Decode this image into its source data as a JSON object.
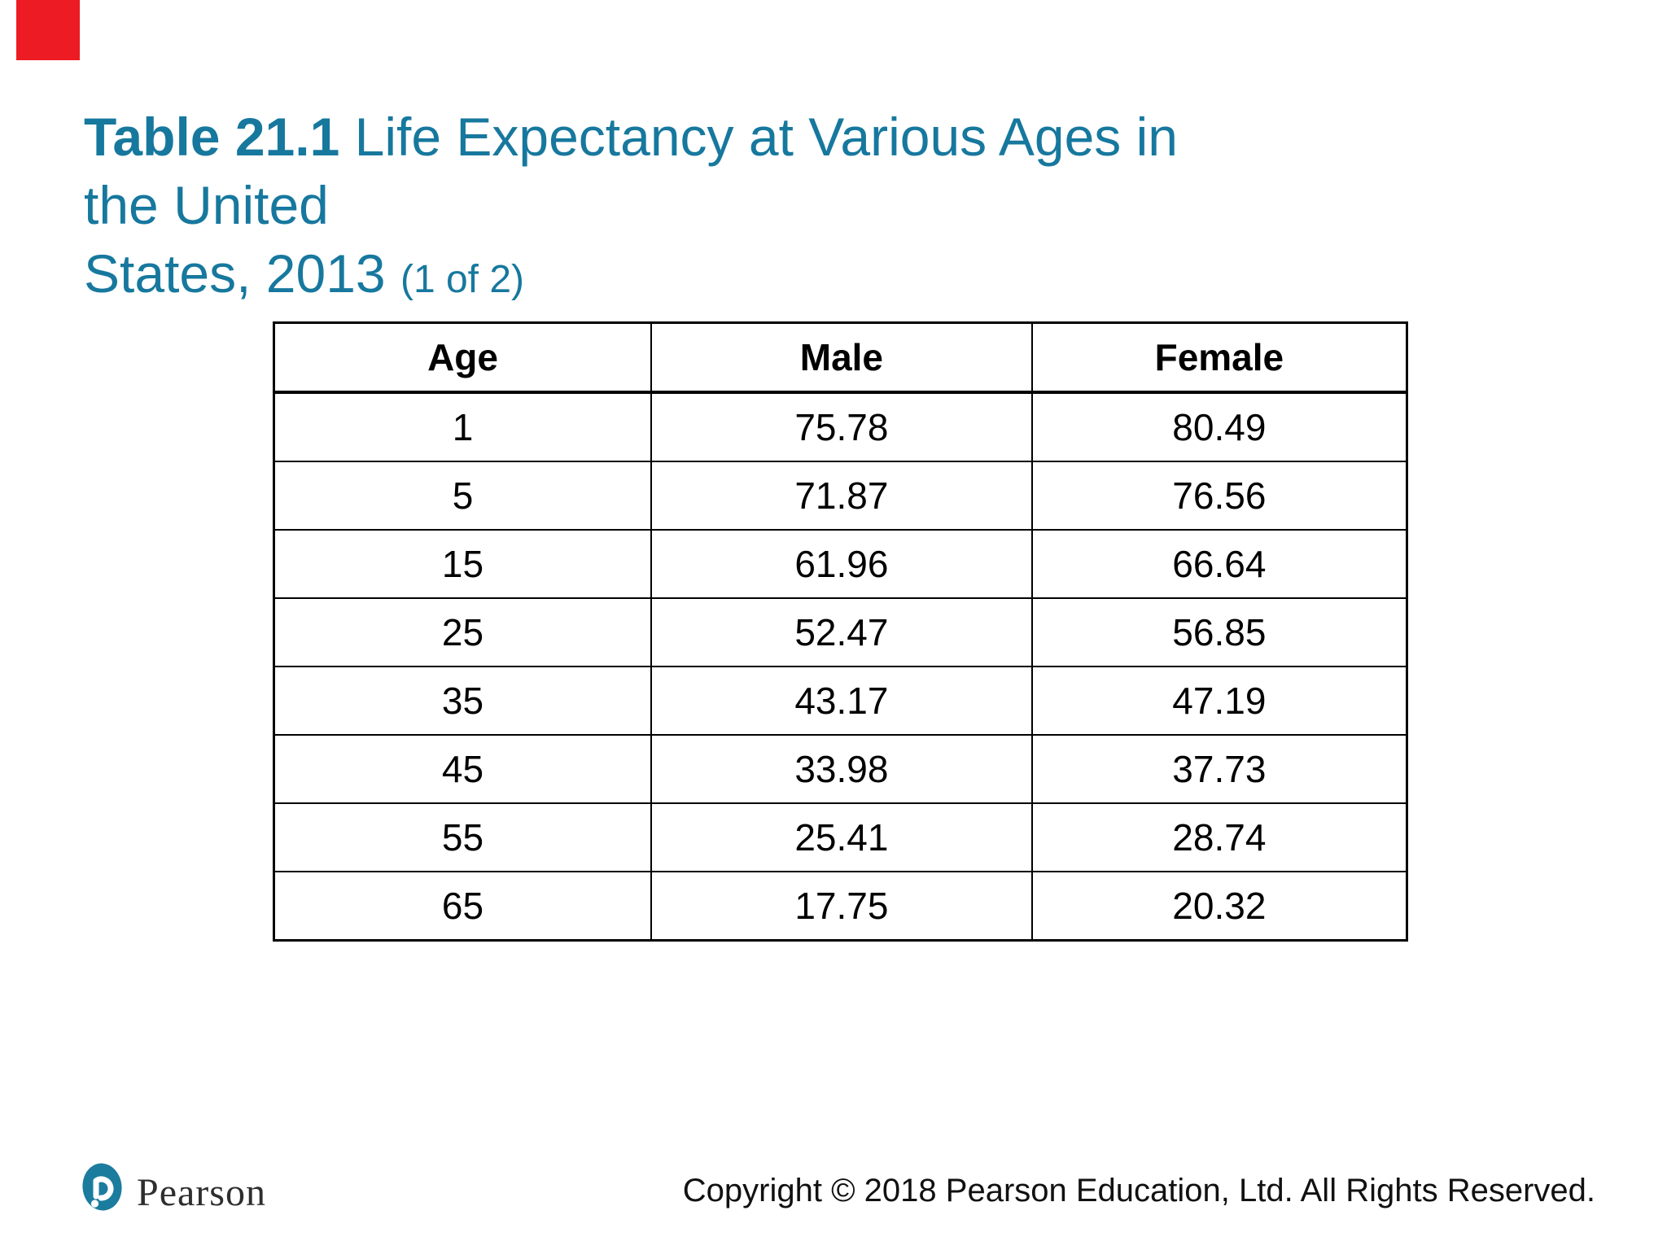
{
  "colors": {
    "title_teal": "#17789E",
    "logo_teal": "#1B7C9E",
    "red_marker": "#ED1B24",
    "table_border": "#000000"
  },
  "marker": {
    "name": "red-corner-marker"
  },
  "title": {
    "bold": "Table 21.1",
    "line1_rest": " Life Expectancy at Various Ages in the United",
    "line2": "States, 2013 ",
    "pagination": "(1 of 2)"
  },
  "table": {
    "headers": [
      "Age",
      "Male",
      "Female"
    ],
    "rows": [
      [
        "1",
        "75.78",
        "80.49"
      ],
      [
        "5",
        "71.87",
        "76.56"
      ],
      [
        "15",
        "61.96",
        "66.64"
      ],
      [
        "25",
        "52.47",
        "56.85"
      ],
      [
        "35",
        "43.17",
        "47.19"
      ],
      [
        "45",
        "33.98",
        "37.73"
      ],
      [
        "55",
        "25.41",
        "28.74"
      ],
      [
        "65",
        "17.75",
        "20.32"
      ]
    ]
  },
  "footer": {
    "brand": "Pearson",
    "copyright": "Copyright © 2018 Pearson Education, Ltd. All Rights Reserved."
  },
  "chart_data": {
    "type": "table",
    "title": "Table 21.1 Life Expectancy at Various Ages in the United States, 2013 (1 of 2)",
    "columns": [
      "Age",
      "Male",
      "Female"
    ],
    "rows": [
      [
        1,
        75.78,
        80.49
      ],
      [
        5,
        71.87,
        76.56
      ],
      [
        15,
        61.96,
        66.64
      ],
      [
        25,
        52.47,
        56.85
      ],
      [
        35,
        43.17,
        47.19
      ],
      [
        45,
        33.98,
        37.73
      ],
      [
        55,
        25.41,
        28.74
      ],
      [
        65,
        17.75,
        20.32
      ]
    ]
  }
}
